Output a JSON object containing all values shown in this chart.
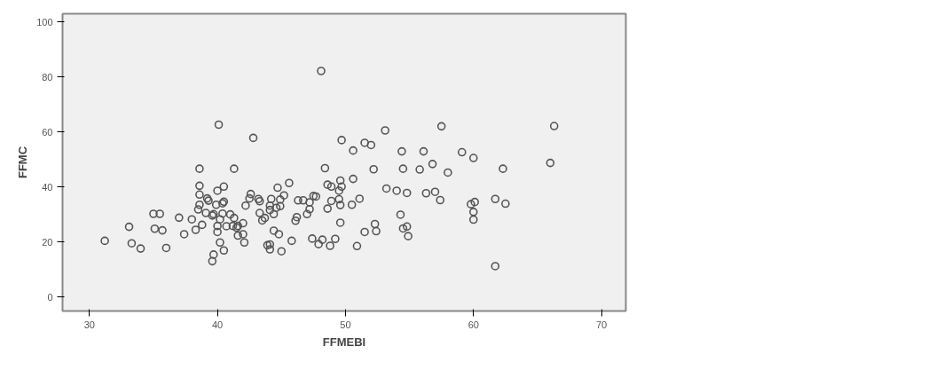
{
  "chart_data": {
    "type": "scatter",
    "xlabel": "FFMEBI",
    "ylabel": "FFMC",
    "xlim": [
      27.9,
      71.9
    ],
    "ylim": [
      -5,
      103
    ],
    "xticks": [
      30,
      40,
      50,
      60,
      70
    ],
    "yticks": [
      0,
      20,
      40,
      60,
      80,
      100
    ],
    "grid": false,
    "marker": "circle",
    "series": [
      {
        "color": "#555555",
        "x": [
          31.2,
          33.1,
          33.3,
          34.0,
          35.0,
          35.5,
          35.1,
          35.7,
          36.0,
          37.0,
          37.4,
          38.0,
          38.3,
          38.8,
          38.6,
          38.6,
          38.6,
          38.6,
          38.5,
          39.2,
          39.3,
          39.1,
          39.6,
          39.7,
          39.6,
          39.7,
          40.0,
          40.5,
          39.9,
          40.4,
          40.5,
          40.0,
          40.0,
          40.2,
          40.2,
          40.5,
          40.4,
          40.7,
          41.0,
          41.3,
          41.3,
          41.2,
          41.5,
          41.6,
          41.6,
          42.0,
          42.0,
          42.1,
          42.2,
          42.6,
          42.5,
          43.2,
          43.3,
          43.3,
          43.5,
          43.7,
          44.2,
          44.1,
          44.1,
          44.4,
          44.6,
          44.7,
          44.9,
          44.9,
          45.2,
          43.9,
          44.1,
          44.1,
          44.4,
          44.8,
          45.0,
          45.6,
          45.8,
          46.1,
          46.2,
          46.3,
          46.7,
          47.0,
          47.2,
          47.2,
          47.4,
          47.5,
          40.1,
          42.8,
          48.1,
          53.1,
          57.5,
          66.3,
          49.7,
          51.5,
          52.0,
          50.6,
          54.4,
          56.1,
          59.1,
          60.0,
          66.0,
          48.4,
          52.2,
          54.5,
          55.8,
          56.8,
          58.0,
          62.3,
          49.6,
          50.6,
          48.6,
          48.9,
          49.7,
          49.5,
          53.2,
          54.0,
          54.8,
          56.3,
          57.0,
          57.4,
          47.7,
          48.9,
          49.5,
          48.6,
          49.6,
          50.5,
          51.1,
          49.6,
          52.3,
          51.5,
          52.4,
          54.3,
          54.5,
          54.8,
          54.9,
          48.2,
          47.9,
          48.8,
          49.2,
          50.9,
          59.8,
          60.1,
          60.0,
          60.0,
          61.7,
          62.5,
          61.7
        ],
        "values": [
          20.5,
          25.6,
          19.6,
          17.7,
          30.3,
          30.3,
          24.9,
          24.3,
          17.9,
          28.9,
          22.9,
          28.3,
          24.5,
          26.3,
          46.7,
          40.5,
          37.3,
          33.6,
          31.9,
          35.9,
          35.1,
          30.6,
          29.7,
          15.5,
          13.1,
          30.2,
          38.7,
          40.2,
          33.6,
          34.1,
          34.7,
          23.7,
          25.9,
          19.9,
          28.3,
          17.0,
          30.4,
          25.8,
          30.1,
          46.7,
          28.8,
          25.9,
          25.3,
          25.9,
          22.4,
          26.9,
          22.9,
          19.9,
          33.3,
          37.5,
          35.9,
          35.7,
          34.9,
          30.6,
          27.9,
          28.8,
          35.7,
          33.3,
          31.7,
          30.2,
          32.5,
          39.8,
          33.1,
          35.5,
          37.0,
          18.9,
          19.2,
          17.4,
          24.2,
          22.9,
          16.7,
          41.5,
          20.5,
          27.8,
          29.1,
          35.2,
          35.2,
          30.2,
          34.5,
          32.0,
          21.3,
          36.8,
          62.7,
          57.9,
          82.2,
          60.6,
          62.1,
          62.2,
          57.1,
          56.1,
          55.3,
          53.3,
          53.0,
          53.0,
          52.7,
          50.6,
          48.8,
          46.9,
          46.5,
          46.7,
          46.4,
          48.4,
          45.3,
          46.7,
          42.4,
          43.0,
          40.9,
          40.2,
          40.2,
          38.7,
          39.5,
          38.7,
          37.9,
          37.8,
          38.3,
          35.3,
          36.6,
          35.0,
          35.6,
          32.2,
          33.5,
          33.6,
          35.8,
          27.1,
          26.6,
          23.7,
          24.0,
          30.0,
          25.0,
          25.7,
          22.2,
          20.9,
          19.3,
          18.7,
          21.2,
          18.6,
          33.8,
          34.6,
          31.0,
          28.2,
          35.7,
          34.0,
          11.3
        ]
      }
    ]
  }
}
